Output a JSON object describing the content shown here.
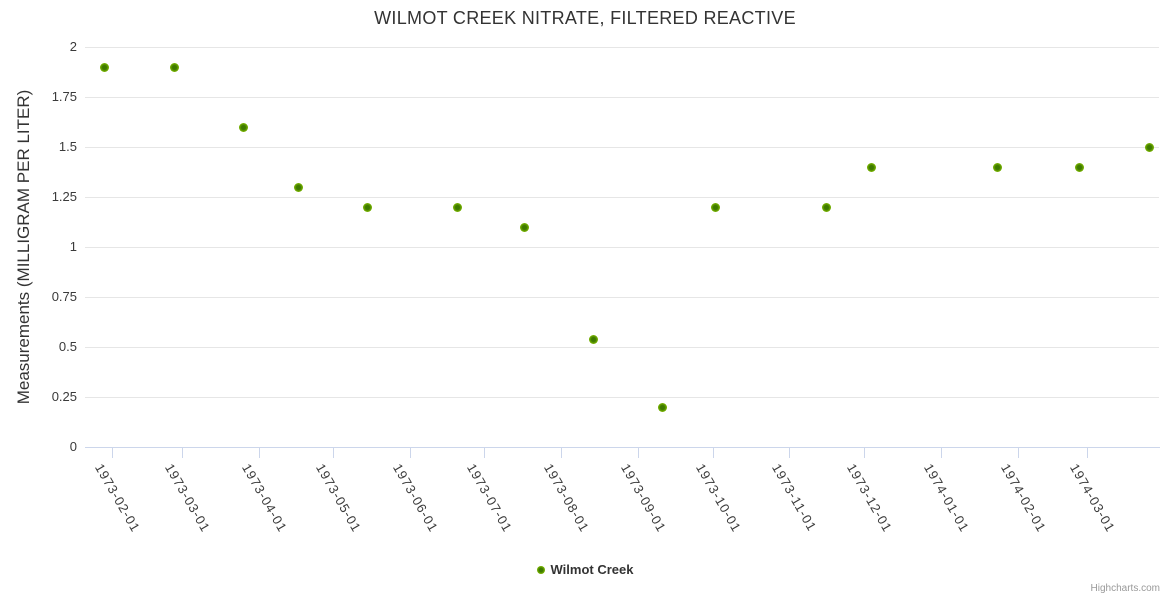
{
  "chart": {
    "credits": "Highcharts.com"
  },
  "colors": {
    "background": "#ffffff",
    "title_text": "#333333",
    "axis_label_text": "#3a3a3a",
    "gridline": "#e6e6e6",
    "axis_line": "#ccd6eb",
    "point_outer": "#84c000",
    "point_inner": "#3e7a00",
    "legend_text": "#333333",
    "credits_text": "#999999"
  },
  "chart_data": {
    "type": "scatter",
    "title": "WILMOT CREEK NITRATE, FILTERED REACTIVE",
    "xlabel": "",
    "ylabel": "Measurements (MILLIGRAM PER LITER)",
    "x_type": "datetime",
    "xlim": [
      "1973-01-21",
      "1974-03-30"
    ],
    "ylim": [
      0,
      2
    ],
    "x_ticks": [
      "1973-02-01",
      "1973-03-01",
      "1973-04-01",
      "1973-05-01",
      "1973-06-01",
      "1973-07-01",
      "1973-08-01",
      "1973-09-01",
      "1973-10-01",
      "1973-11-01",
      "1973-12-01",
      "1974-01-01",
      "1974-02-01",
      "1974-03-01"
    ],
    "y_ticks": [
      0,
      0.25,
      0.5,
      0.75,
      1,
      1.25,
      1.5,
      1.75,
      2
    ],
    "y_tick_labels": [
      "0",
      "0.25",
      "0.5",
      "0.75",
      "1",
      "1.25",
      "1.5",
      "1.75",
      "2"
    ],
    "grid": "horizontal",
    "legend_position": "bottom-center",
    "series": [
      {
        "name": "Wilmot Creek",
        "color": "#77b300",
        "points": [
          {
            "date": "1973-01-29",
            "value": 1.9
          },
          {
            "date": "1973-02-26",
            "value": 1.9
          },
          {
            "date": "1973-03-26",
            "value": 1.6
          },
          {
            "date": "1973-04-17",
            "value": 1.3
          },
          {
            "date": "1973-05-15",
            "value": 1.2
          },
          {
            "date": "1973-06-20",
            "value": 1.2
          },
          {
            "date": "1973-07-17",
            "value": 1.1
          },
          {
            "date": "1973-08-14",
            "value": 0.54
          },
          {
            "date": "1973-09-11",
            "value": 0.2
          },
          {
            "date": "1973-10-02",
            "value": 1.2
          },
          {
            "date": "1973-11-16",
            "value": 1.2
          },
          {
            "date": "1973-12-04",
            "value": 1.4
          },
          {
            "date": "1974-01-24",
            "value": 1.4
          },
          {
            "date": "1974-02-26",
            "value": 1.4
          },
          {
            "date": "1974-03-26",
            "value": 1.5
          }
        ]
      }
    ]
  }
}
